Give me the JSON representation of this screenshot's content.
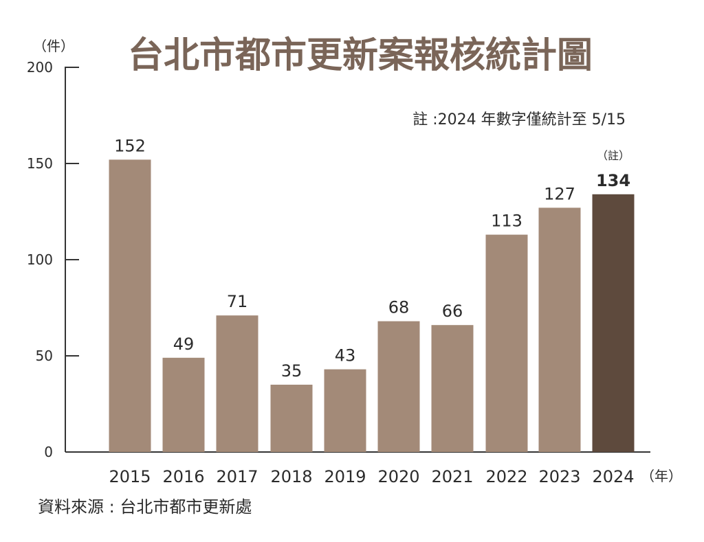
{
  "chart_data": {
    "type": "bar",
    "title": "台北市都市更新案報核統計圖",
    "ylabel": "（件）",
    "xlabel": "（年）",
    "ylim": [
      0,
      200
    ],
    "yticks": [
      0,
      50,
      100,
      150,
      200
    ],
    "categories": [
      "2015",
      "2016",
      "2017",
      "2018",
      "2019",
      "2020",
      "2021",
      "2022",
      "2023",
      "2024"
    ],
    "values": [
      152,
      49,
      71,
      35,
      43,
      68,
      66,
      113,
      127,
      134
    ],
    "highlight_index": 9,
    "highlight_note_marker": "（註）",
    "note": "註 :2024 年數字僅統計至 5/15",
    "source": "資料來源 : 台北市都市更新處",
    "colors": {
      "bar": "#a38a78",
      "bar_highlight": "#5e4a3d",
      "highlight_label": "#c8102e",
      "title": "#7a6558",
      "axis": "#333333"
    }
  }
}
